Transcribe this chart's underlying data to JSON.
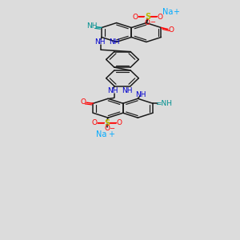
{
  "bg_color": "#dcdcdc",
  "bond_color": "#1a1a1a",
  "o_color": "#ff0000",
  "s_color": "#b8b800",
  "n_teal_color": "#009090",
  "nh_blue_color": "#0000cc",
  "na_color": "#00aaff",
  "figsize": [
    3.0,
    3.0
  ],
  "dpi": 100,
  "xlim": [
    0,
    10
  ],
  "ylim": [
    0,
    18
  ]
}
